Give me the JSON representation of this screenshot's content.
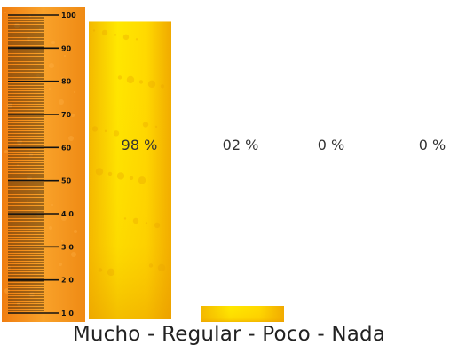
{
  "chart_data": {
    "type": "bar",
    "categories": [
      "Mucho",
      "Regular",
      "Poco",
      "Nada"
    ],
    "values": [
      98,
      2,
      0,
      0
    ],
    "data_labels": [
      "98 %",
      "02 %",
      "0 %",
      "0 %"
    ],
    "ylim": [
      7,
      100
    ],
    "ruler_ticks": [
      "100",
      "90",
      "80",
      "70",
      "60",
      "50",
      "4 0",
      "3 0",
      "2 0",
      "1 0"
    ],
    "ruler_tick_values": [
      100,
      90,
      80,
      70,
      60,
      50,
      40,
      30,
      20,
      10
    ],
    "caption": "Mucho - Regular - Poco - Nada",
    "colors": {
      "ruler": "#f7941d",
      "bar_top": "#ffe600",
      "bar_bottom": "#f3a400",
      "tick": "#111111"
    }
  }
}
